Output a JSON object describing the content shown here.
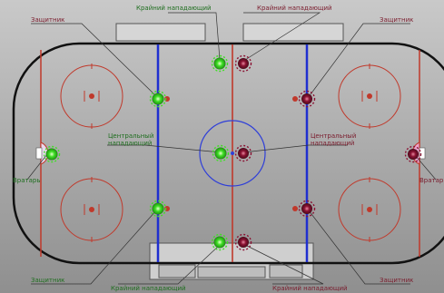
{
  "labels": {
    "top_green": "Крайний нападающий",
    "top_red": "Крайний нападающий",
    "left_def": "Защитник",
    "right_def": "Защитник",
    "center_green_1": "Центральный",
    "center_green_2": "нападающий",
    "center_red_1": "Центральный",
    "center_red_2": "нападающий",
    "goalie_left": "Вратарь",
    "goalie_right": "Вратарь",
    "bottom_left_def": "Защитник",
    "bottom_right_def": "Защитник",
    "bottom_green": "Крайний нападающий",
    "bottom_red": "Крайний нападающий"
  },
  "colors": {
    "green_team": "#3ee024",
    "red_team": "#8b1233",
    "blue_line": "#1f2fd0",
    "red_line": "#c0392b",
    "board": "#111111"
  }
}
